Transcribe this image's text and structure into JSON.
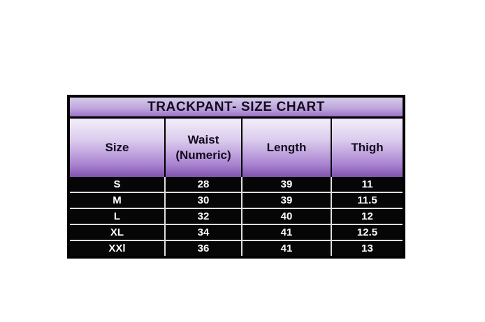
{
  "chart_data": {
    "type": "table",
    "title": "TRACKPANT- SIZE CHART",
    "columns": [
      "Size",
      "Waist (Numeric)",
      "Length",
      "Thigh"
    ],
    "rows": [
      [
        "S",
        "28",
        "39",
        "11"
      ],
      [
        "M",
        "30",
        "39",
        "11.5"
      ],
      [
        "L",
        "32",
        "40",
        "12"
      ],
      [
        "XL",
        "34",
        "41",
        "12.5"
      ],
      [
        "XXl",
        "36",
        "41",
        "13"
      ]
    ],
    "layout_hints": {
      "title_band": "purple vertical gradient, bold black centered text",
      "header_band": "light-to-dark purple vertical gradient, bold dark text",
      "body_rows": "black background, white bold centered text, thin white dividers",
      "outer_border": "thick black"
    }
  },
  "colors": {
    "page_background": "#ffffff",
    "border": "#000000",
    "title_gradient_top": "#d6cbe8",
    "title_gradient_mid": "#bfa7de",
    "title_gradient_bottom": "#9e74c8",
    "header_gradient_top": "#f3eef9",
    "header_gradient_mid": "#d9c9ec",
    "header_gradient_low": "#a983d0",
    "header_gradient_bottom": "#7f51ad",
    "header_text": "#120b1e",
    "row_background": "#060606",
    "row_text": "#ffffff",
    "row_divider": "#dedede"
  }
}
